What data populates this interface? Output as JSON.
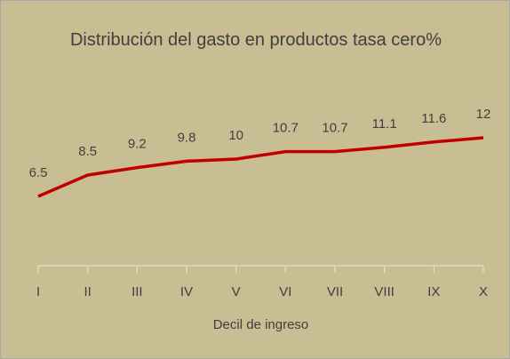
{
  "chart_data": {
    "type": "line",
    "title": "Distribución del gasto en productos tasa cero%",
    "x_label": "Decil de ingreso",
    "categories": [
      "I",
      "II",
      "III",
      "IV",
      "V",
      "VI",
      "VII",
      "VIII",
      "IX",
      "X"
    ],
    "values": [
      6.5,
      8.5,
      9.2,
      9.8,
      10,
      10.7,
      10.7,
      11.1,
      11.6,
      12
    ],
    "color": "#c00000",
    "ylim": [
      0,
      14
    ],
    "grid": false
  }
}
